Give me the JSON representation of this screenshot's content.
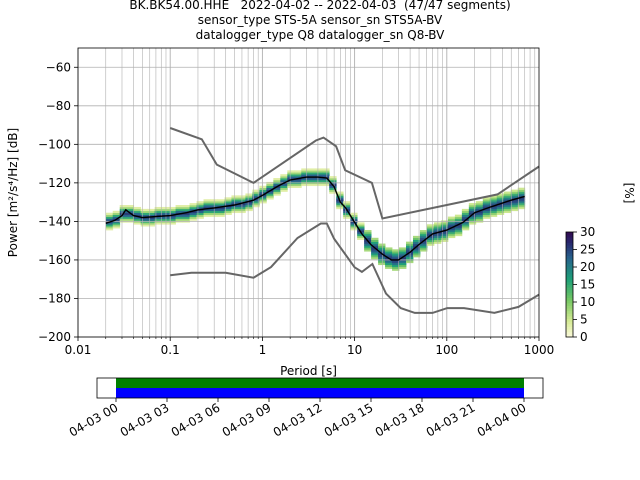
{
  "figure": {
    "title_lines": [
      "BK.BK54.00.HHE   2022-04-02 -- 2022-04-03  (47/47 segments)",
      "sensor_type STS-5A sensor_sn STS5A-BV",
      "datalogger_type Q8 datalogger_sn Q8-BV"
    ]
  },
  "chart_data": [
    {
      "type": "heatmap",
      "xlabel": "Period [s]",
      "ylabel": "Power [m²/s⁴/Hz] [dB]",
      "x_scale": "log",
      "xlim": [
        0.01,
        1000
      ],
      "ylim": [
        -200,
        -50
      ],
      "x_tick_labels": [
        "0.01",
        "0.1",
        "1",
        "10",
        "100",
        "1000"
      ],
      "y_ticks": [
        -200,
        -180,
        -160,
        -140,
        -120,
        -100,
        -80,
        -60
      ],
      "grid": true,
      "noise_model_high": {
        "period": [
          0.1,
          0.22,
          0.32,
          0.8,
          3.8,
          4.6,
          6.3,
          7.9,
          15.4,
          20,
          354.8,
          1000
        ],
        "power": [
          -91.5,
          -97.4,
          -110.5,
          -120,
          -98,
          -96.5,
          -101,
          -113.5,
          -120,
          -138.5,
          -126,
          -111.5
        ]
      },
      "noise_model_low": {
        "period": [
          0.1,
          0.17,
          0.4,
          0.8,
          1.24,
          2.4,
          4.3,
          5,
          6,
          10,
          12,
          15.6,
          21.9,
          31.6,
          45,
          70,
          101,
          154,
          328,
          600,
          1000
        ],
        "power": [
          -168,
          -166.7,
          -166.7,
          -169.2,
          -163.7,
          -148.6,
          -141.1,
          -141.1,
          -149,
          -163.8,
          -166.2,
          -162.1,
          -177.5,
          -185,
          -187.5,
          -187.5,
          -185,
          -185,
          -187.5,
          -184.4,
          -178
        ]
      },
      "mean_psd": {
        "period": [
          0.02,
          0.025,
          0.03,
          0.033,
          0.04,
          0.05,
          0.07,
          0.1,
          0.15,
          0.2,
          0.3,
          0.5,
          0.8,
          1.0,
          1.5,
          2.0,
          3.0,
          4.0,
          5.0,
          6.0,
          7.0,
          8.0,
          10,
          12,
          15,
          20,
          25,
          30,
          40,
          50,
          70,
          100,
          150,
          200,
          300,
          500,
          700
        ],
        "power": [
          -141,
          -139.5,
          -137,
          -134,
          -137,
          -138,
          -137.5,
          -137,
          -135.5,
          -134,
          -133,
          -131.5,
          -129,
          -126.5,
          -121.5,
          -118.5,
          -117,
          -117,
          -117.5,
          -122,
          -130,
          -133,
          -140.5,
          -146.5,
          -152,
          -157,
          -160,
          -160,
          -156,
          -152,
          -146.5,
          -144.5,
          -140.5,
          -135.5,
          -132.5,
          -129,
          -127
        ]
      },
      "colorbar": {
        "label": "[%]",
        "range": [
          0,
          30
        ],
        "ticks": [
          "0",
          "5",
          "10",
          "15",
          "20",
          "25",
          "30"
        ]
      }
    },
    {
      "type": "timeline",
      "tick_labels": [
        "04-03 00",
        "04-03 03",
        "04-03 06",
        "04-03 09",
        "04-03 12",
        "04-03 15",
        "04-03 18",
        "04-03 21",
        "04-04 00"
      ],
      "coverage_start_tick": 0,
      "coverage_end_tick": 8
    }
  ],
  "colors": {
    "noise_model": "#666666",
    "mean_line": "#000000",
    "coverage_top": "#008000",
    "coverage_bottom": "#0000ff",
    "grid": "#b0b0b0"
  }
}
